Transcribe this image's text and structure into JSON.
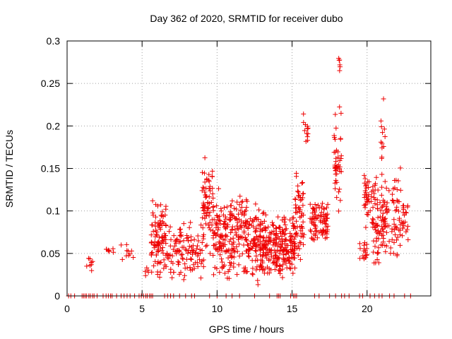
{
  "chart_data": {
    "type": "scatter",
    "title": "Day 362 of 2020, SRMTID for receiver dubo",
    "xlabel": "GPS time / hours",
    "ylabel": "SRMTID / TECUs",
    "xlim": [
      0,
      24.25
    ],
    "ylim": [
      0,
      0.3
    ],
    "xticks": [
      0,
      5,
      10,
      15,
      20
    ],
    "yticks": [
      0,
      0.05,
      0.1,
      0.15,
      0.2,
      0.25,
      0.3
    ],
    "xtick_labels": [
      "0",
      "5",
      "10",
      "15",
      "20"
    ],
    "ytick_labels": [
      "0",
      "0.05",
      "0.1",
      "0.15",
      "0.2",
      "0.25",
      "0.3"
    ],
    "grid": true,
    "marker": "+",
    "series_color": "#ee0000",
    "zero_points_x": [
      0.1,
      0.25,
      0.5,
      1.0,
      1.1,
      1.2,
      1.3,
      1.45,
      1.55,
      1.7,
      1.8,
      2.0,
      2.4,
      2.6,
      2.75,
      2.9,
      3.0,
      3.3,
      3.6,
      3.8,
      4.0,
      4.2,
      4.5,
      4.8,
      4.95,
      5.1,
      5.25,
      5.35,
      5.5,
      5.6,
      5.7,
      6.5,
      6.7,
      6.9,
      7.1,
      7.5,
      7.9,
      8.3,
      8.5,
      9.5,
      10.0,
      10.6,
      11.0,
      11.5,
      12.5,
      13.5,
      14.0,
      14.1,
      14.2,
      14.9,
      15.1,
      15.2,
      15.3,
      16.5,
      16.8,
      17.5,
      17.9,
      18.3,
      18.5,
      18.8,
      19.5,
      19.7,
      20.2,
      20.5,
      20.8,
      21.0,
      21.5,
      21.8,
      22.5,
      22.9
    ],
    "clusters": [
      {
        "x": [
          1.3,
          1.7
        ],
        "y": [
          0.025,
          0.05
        ],
        "n": 8
      },
      {
        "x": [
          2.6,
          3.1
        ],
        "y": [
          0.05,
          0.06
        ],
        "n": 7
      },
      {
        "x": [
          3.6,
          4.6
        ],
        "y": [
          0.035,
          0.062
        ],
        "n": 10
      },
      {
        "x": [
          5.1,
          5.5
        ],
        "y": [
          0.02,
          0.05
        ],
        "n": 5
      },
      {
        "x": [
          5.6,
          6.6
        ],
        "y": [
          0.012,
          0.12
        ],
        "n": 95
      },
      {
        "x": [
          6.6,
          7.5
        ],
        "y": [
          0.02,
          0.085
        ],
        "n": 40
      },
      {
        "x": [
          7.5,
          9.0
        ],
        "y": [
          0.015,
          0.09
        ],
        "n": 70
      },
      {
        "x": [
          9.0,
          9.7
        ],
        "y": [
          0.03,
          0.165
        ],
        "n": 70
      },
      {
        "x": [
          9.7,
          11.0
        ],
        "y": [
          0.015,
          0.13
        ],
        "n": 125
      },
      {
        "x": [
          11.0,
          12.0
        ],
        "y": [
          0.02,
          0.125
        ],
        "n": 85
      },
      {
        "x": [
          12.0,
          13.2
        ],
        "y": [
          0.01,
          0.115
        ],
        "n": 120
      },
      {
        "x": [
          13.2,
          14.2
        ],
        "y": [
          0.02,
          0.1
        ],
        "n": 100
      },
      {
        "x": [
          14.2,
          15.2
        ],
        "y": [
          0.02,
          0.1
        ],
        "n": 110
      },
      {
        "x": [
          15.2,
          15.8
        ],
        "y": [
          0.03,
          0.16
        ],
        "n": 60
      },
      {
        "x": [
          15.7,
          16.1
        ],
        "y": [
          0.16,
          0.22
        ],
        "n": 12
      },
      {
        "x": [
          16.2,
          17.4
        ],
        "y": [
          0.06,
          0.115
        ],
        "n": 85
      },
      {
        "x": [
          17.8,
          18.3
        ],
        "y": [
          0.08,
          0.23
        ],
        "n": 45
      },
      {
        "x": [
          18.1,
          18.2
        ],
        "y": [
          0.26,
          0.282
        ],
        "n": 6
      },
      {
        "x": [
          19.5,
          20.0
        ],
        "y": [
          0.035,
          0.07
        ],
        "n": 18
      },
      {
        "x": [
          19.8,
          20.4
        ],
        "y": [
          0.07,
          0.16
        ],
        "n": 40
      },
      {
        "x": [
          20.4,
          21.3
        ],
        "y": [
          0.03,
          0.15
        ],
        "n": 85
      },
      {
        "x": [
          20.9,
          21.2
        ],
        "y": [
          0.15,
          0.242
        ],
        "n": 12
      },
      {
        "x": [
          21.3,
          22.3
        ],
        "y": [
          0.035,
          0.155
        ],
        "n": 55
      },
      {
        "x": [
          22.3,
          22.8
        ],
        "y": [
          0.065,
          0.12
        ],
        "n": 22
      }
    ]
  }
}
